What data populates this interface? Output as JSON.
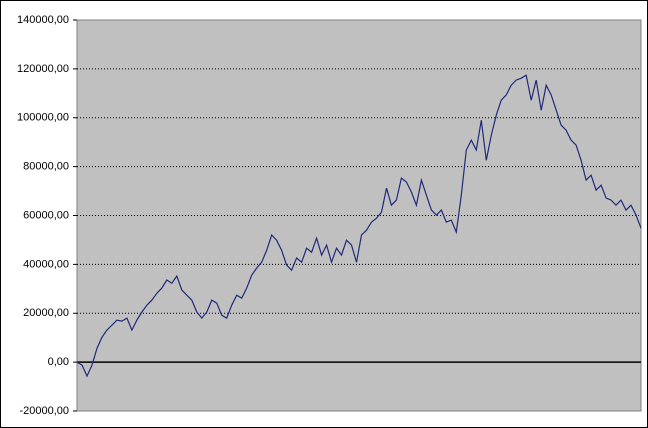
{
  "chart_data": {
    "type": "line",
    "color": "#1f2a7a",
    "grid": true,
    "ylim": [
      -20000,
      140000
    ],
    "yticks": [
      {
        "value": -20000,
        "label": "-20000,00"
      },
      {
        "value": 0,
        "label": "0,00"
      },
      {
        "value": 20000,
        "label": "20000,00"
      },
      {
        "value": 40000,
        "label": "40000,00"
      },
      {
        "value": 60000,
        "label": "60000,00"
      },
      {
        "value": 80000,
        "label": "80000,00"
      },
      {
        "value": 100000,
        "label": "100000,00"
      },
      {
        "value": 120000,
        "label": "120000,00"
      },
      {
        "value": 140000,
        "label": "140000,00"
      }
    ],
    "values": [
      0,
      -1200,
      -5700,
      -1200,
      5700,
      10200,
      13100,
      15100,
      17200,
      16800,
      18000,
      13100,
      17200,
      20500,
      23300,
      25400,
      28200,
      30300,
      33600,
      32300,
      35200,
      29500,
      27400,
      25400,
      20500,
      18000,
      20500,
      25400,
      24100,
      19200,
      18000,
      23300,
      27400,
      26200,
      30300,
      35600,
      38500,
      40900,
      45800,
      52000,
      49900,
      45800,
      39700,
      37600,
      42600,
      40900,
      46600,
      45000,
      50700,
      43800,
      47900,
      40900,
      46600,
      43800,
      49900,
      47900,
      40900,
      52000,
      54000,
      57300,
      58900,
      61400,
      71200,
      64200,
      66300,
      75300,
      73700,
      69600,
      64200,
      74500,
      68300,
      62200,
      60200,
      62200,
      57300,
      58100,
      53200,
      68300,
      86800,
      90800,
      86800,
      99000,
      82600,
      92900,
      101100,
      107200,
      109300,
      113300,
      115400,
      116200,
      117400,
      107200,
      115400,
      103100,
      113300,
      109300,
      103100,
      97000,
      94900,
      90800,
      88800,
      82600,
      74500,
      76500,
      70400,
      72400,
      67100,
      66300,
      64200,
      66300,
      62200,
      64200,
      60200,
      54800
    ]
  }
}
